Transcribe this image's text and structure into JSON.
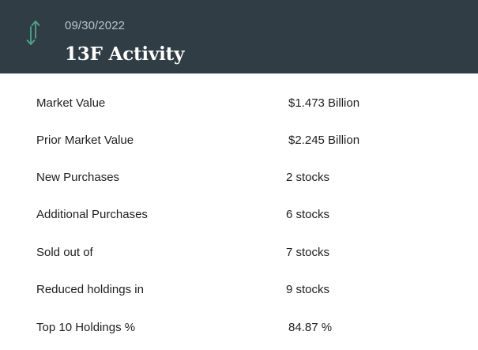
{
  "header": {
    "date": "09/30/2022",
    "title": "13F Activity",
    "icon": "vertical-arrows-icon",
    "icon_color": "#4fa58a",
    "background": "#313d45"
  },
  "rows": [
    {
      "label": "Market Value",
      "value": "$1.473 Billion"
    },
    {
      "label": "Prior Market Value",
      "value": "$2.245 Billion"
    },
    {
      "label": "New Purchases",
      "value": "2 stocks"
    },
    {
      "label": "Additional Purchases",
      "value": "6 stocks"
    },
    {
      "label": "Sold out of",
      "value": "7 stocks"
    },
    {
      "label": "Reduced holdings in",
      "value": "9 stocks"
    },
    {
      "label": "Top 10 Holdings %",
      "value": "84.87 %"
    }
  ]
}
